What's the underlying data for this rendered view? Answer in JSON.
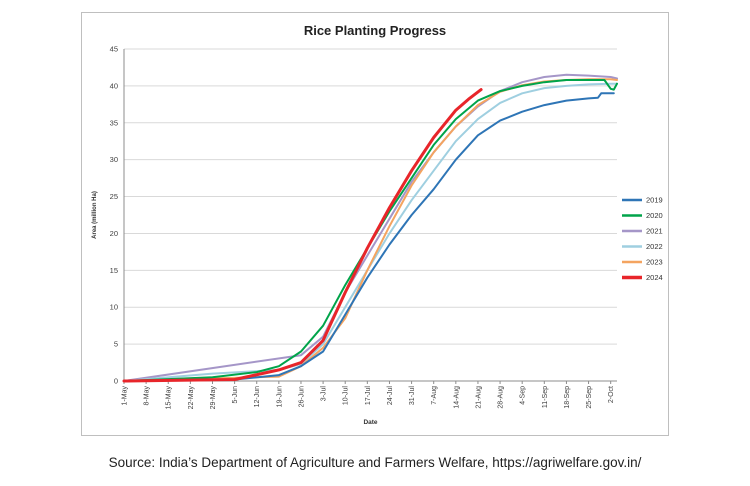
{
  "source_text": "Source: India’s Department of Agriculture and Farmers Welfare, https://agriwelfare.gov.in/",
  "colors": {
    "2019": "#2e75b6",
    "2020": "#00a44a",
    "2021": "#a596c8",
    "2022": "#9fcfe0",
    "2023": "#f4a460",
    "2024": "#e8252a",
    "grid": "#d9d9d9",
    "axis_text": "#404040"
  },
  "chart_data": {
    "type": "line",
    "title": "Rice Planting Progress",
    "xlabel": "Date",
    "ylabel": "Area (million Ha)",
    "x_ticks": [
      "1-May",
      "8-May",
      "15-May",
      "22-May",
      "29-May",
      "5-Jun",
      "12-Jun",
      "19-Jun",
      "26-Jun",
      "3-Jul",
      "10-Jul",
      "17-Jul",
      "24-Jul",
      "31-Jul",
      "7-Aug",
      "14-Aug",
      "21-Aug",
      "28-Aug",
      "4-Sep",
      "11-Sep",
      "18-Sep",
      "25-Sep",
      "2-Oct"
    ],
    "y_ticks": [
      "0",
      "5",
      "10",
      "15",
      "20",
      "25",
      "30",
      "35",
      "40",
      "45"
    ],
    "ylim": [
      0,
      45
    ],
    "grid": "horizontal",
    "legend_position": "right",
    "series": [
      {
        "name": "2019",
        "color_key": "2019",
        "width": 2,
        "x": [
          "1-May",
          "5-Jun",
          "19-Jun",
          "26-Jun",
          "3-Jul",
          "10-Jul",
          "17-Jul",
          "24-Jul",
          "31-Jul",
          "7-Aug",
          "14-Aug",
          "21-Aug",
          "28-Aug",
          "4-Sep",
          "11-Sep",
          "18-Sep",
          "25-Sep",
          "28-Sep",
          "29-Sep",
          "3-Oct"
        ],
        "y": [
          0,
          0.2,
          0.8,
          2,
          4,
          9,
          14,
          18.5,
          22.5,
          26,
          30,
          33.3,
          35.3,
          36.5,
          37.4,
          38,
          38.3,
          38.4,
          39,
          39
        ]
      },
      {
        "name": "2020",
        "color_key": "2020",
        "width": 2,
        "x": [
          "1-May",
          "29-May",
          "12-Jun",
          "19-Jun",
          "26-Jun",
          "3-Jul",
          "10-Jul",
          "17-Jul",
          "24-Jul",
          "31-Jul",
          "7-Aug",
          "14-Aug",
          "21-Aug",
          "28-Aug",
          "4-Sep",
          "11-Sep",
          "18-Sep",
          "25-Sep",
          "30-Sep",
          "2-Oct",
          "3-Oct",
          "4-Oct"
        ],
        "y": [
          0,
          0.5,
          1.2,
          2,
          4,
          7.5,
          13,
          18,
          23,
          27.5,
          32,
          35.5,
          38,
          39.3,
          40,
          40.5,
          40.8,
          40.8,
          40.8,
          39.6,
          39.5,
          40.3
        ]
      },
      {
        "name": "2021",
        "color_key": "2021",
        "width": 2,
        "x": [
          "1-May",
          "26-Jun",
          "3-Jul",
          "10-Jul",
          "17-Jul",
          "24-Jul",
          "31-Jul",
          "7-Aug",
          "14-Aug",
          "21-Aug",
          "28-Aug",
          "4-Sep",
          "11-Sep",
          "18-Sep",
          "25-Sep",
          "2-Oct",
          "4-Oct"
        ],
        "y": [
          0,
          3.5,
          6,
          12,
          17,
          22,
          27,
          31,
          34.5,
          37.2,
          39.3,
          40.5,
          41.2,
          41.5,
          41.4,
          41.2,
          41
        ]
      },
      {
        "name": "2022",
        "color_key": "2022",
        "width": 2,
        "x": [
          "1-May",
          "29-May",
          "19-Jun",
          "26-Jun",
          "3-Jul",
          "10-Jul",
          "17-Jul",
          "24-Jul",
          "31-Jul",
          "7-Aug",
          "14-Aug",
          "21-Aug",
          "28-Aug",
          "4-Sep",
          "11-Sep",
          "18-Sep",
          "25-Sep",
          "2-Oct",
          "4-Oct"
        ],
        "y": [
          0,
          1,
          1.5,
          2.3,
          5,
          10,
          15,
          20,
          24.5,
          28.5,
          32.5,
          35.5,
          37.7,
          39,
          39.7,
          40,
          40.2,
          40.3,
          40.3
        ]
      },
      {
        "name": "2023",
        "color_key": "2023",
        "width": 2,
        "x": [
          "1-May",
          "19-Jun",
          "26-Jun",
          "3-Jul",
          "10-Jul",
          "17-Jul",
          "24-Jul",
          "31-Jul",
          "7-Aug",
          "14-Aug",
          "21-Aug",
          "28-Aug",
          "4-Sep",
          "11-Sep",
          "18-Sep",
          "25-Sep",
          "2-Oct",
          "4-Oct"
        ],
        "y": [
          0,
          0.6,
          2,
          4.5,
          8.5,
          15,
          21,
          26.5,
          31,
          34.5,
          37.4,
          39.2,
          40.1,
          40.6,
          40.8,
          40.9,
          40.9,
          40.8
        ]
      },
      {
        "name": "2024",
        "color_key": "2024",
        "width": 3,
        "x": [
          "1-May",
          "5-Jun",
          "19-Jun",
          "26-Jun",
          "3-Jul",
          "10-Jul",
          "17-Jul",
          "24-Jul",
          "31-Jul",
          "7-Aug",
          "14-Aug",
          "18-Aug",
          "22-Aug"
        ],
        "y": [
          0,
          0.2,
          1.5,
          2.5,
          5.5,
          12,
          18,
          23.5,
          28.5,
          33,
          36.7,
          38.2,
          39.5
        ]
      }
    ]
  }
}
